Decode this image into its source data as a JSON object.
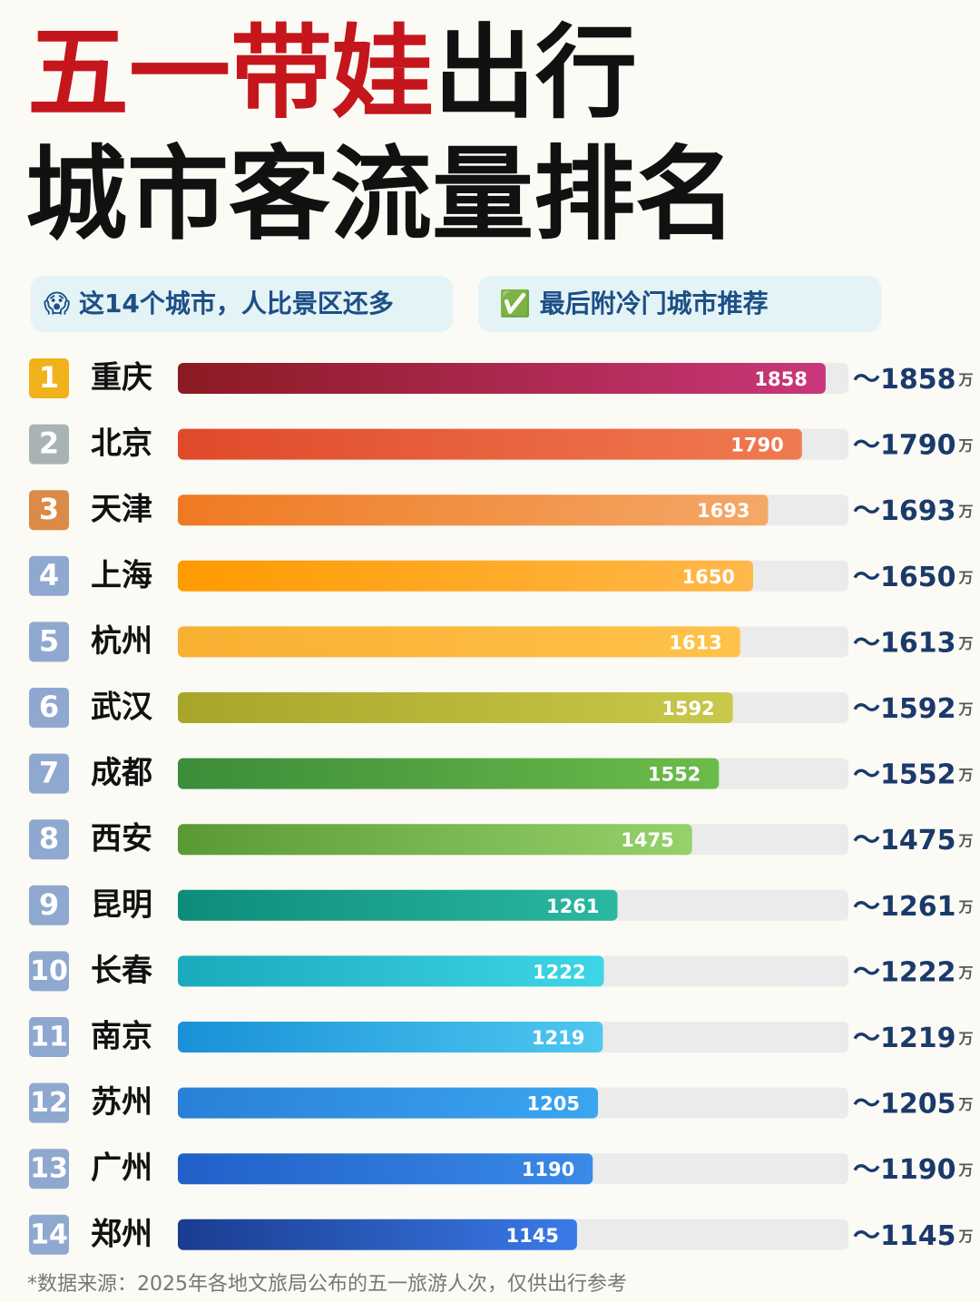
{
  "chart_data": {
    "type": "bar",
    "title_red": "五一带娃",
    "title_black": "出行",
    "subtitle": "城市客流量排名",
    "tags": [
      "😱 这14个城市，人比景区还多",
      "✅ 最后附冷门城市推荐"
    ],
    "ranks": [
      "1",
      "2",
      "3",
      "4",
      "5",
      "6",
      "7",
      "8",
      "9",
      "10",
      "11",
      "12",
      "13",
      "14"
    ],
    "categories": [
      "重庆",
      "北京",
      "天津",
      "上海",
      "杭州",
      "武汉",
      "成都",
      "西安",
      "昆明",
      "长春",
      "南京",
      "苏州",
      "广州",
      "郑州"
    ],
    "values": [
      1858,
      1790,
      1693,
      1650,
      1613,
      1592,
      1552,
      1475,
      1261,
      1222,
      1219,
      1205,
      1190,
      1145
    ],
    "value_labels": [
      "～1858",
      "～1790",
      "～1693",
      "～1650",
      "～1613",
      "～1592",
      "～1552",
      "～1475",
      "～1261",
      "～1222",
      "～1219",
      "～1205",
      "～1190",
      "～1145"
    ],
    "unit": "万",
    "colors": [
      [
        "#8b1a22",
        "#c9377a"
      ],
      [
        "#e04a2a",
        "#f07a50"
      ],
      [
        "#ef7a22",
        "#f4a868"
      ],
      [
        "#ff9a00",
        "#ffb84a"
      ],
      [
        "#f8b030",
        "#ffc24a"
      ],
      [
        "#a8a62a",
        "#c8c84a"
      ],
      [
        "#3c8c3a",
        "#6cbc4a"
      ],
      [
        "#5a9a34",
        "#96d26a"
      ],
      [
        "#0e8c7a",
        "#2ab8a0"
      ],
      [
        "#1aaabb",
        "#3ed6e6"
      ],
      [
        "#1a90d8",
        "#4ec8f0"
      ],
      [
        "#2a80d8",
        "#3aa6f0"
      ],
      [
        "#2060c8",
        "#3a8ae8"
      ],
      [
        "#1a3c90",
        "#3a7ae8"
      ]
    ],
    "rank_colors": [
      "#f0b21a",
      "#a8b4b4",
      "#dc8a48",
      "#8fa8d0",
      "#8fa8d0",
      "#8fa8d0",
      "#8fa8d0",
      "#8fa8d0",
      "#8fa8d0",
      "#8fa8d0",
      "#8fa8d0",
      "#8fa8d0",
      "#8fa8d0",
      "#8fa8d0"
    ],
    "footnote": "*数据来源：2025年各地文旅局公布的五一旅游人次，仅供出行参考"
  }
}
